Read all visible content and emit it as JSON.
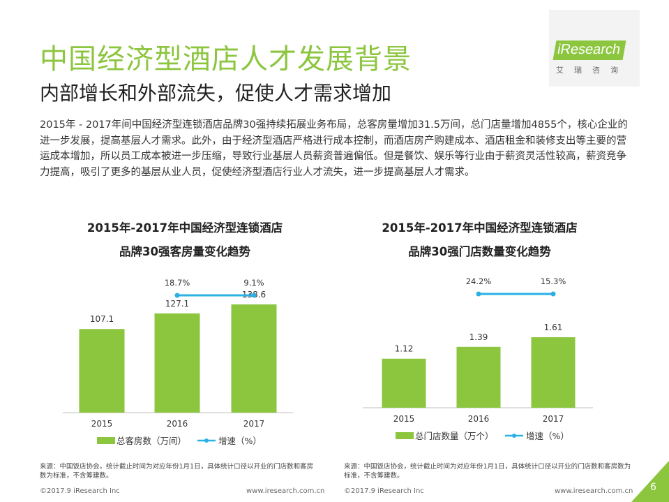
{
  "header": {
    "title": "中国经济型酒店人才发展背景",
    "subtitle": "内部增长和外部流失，促使人才需求增加"
  },
  "body_text": "2015年 - 2017年间中国经济型连锁酒店品牌30强持续拓展业务布局，总客房量增加31.5万间，总门店量增加4855个，核心企业的进一步发展，提高基层人才需求。此外，由于经济型酒店严格进行成本控制，而酒店房产购建成本、酒店租金和装修支出等主要的营运成本增加，所以员工成本被进一步压缩，导致行业基层人员薪资普遍偏低。但是餐饮、娱乐等行业由于薪资灵活性较高，薪资竞争力提高，吸引了更多的基层从业人员，促使经济型酒店行业人才流失，进一步提高基层人才需求。",
  "logo": {
    "text": "iResearch",
    "cn": "艾瑞咨询"
  },
  "colors": {
    "accent": "#8cc63f",
    "line": "#2ab0e4"
  },
  "chart_data": [
    {
      "type": "bar",
      "title_line1": "2015年-2017年中国经济型连锁酒店",
      "title_line2": "品牌30强客房量变化趋势",
      "categories": [
        "2015",
        "2016",
        "2017"
      ],
      "series": [
        {
          "name": "总客房数（万间）",
          "type": "bar",
          "values": [
            107.1,
            127.1,
            138.6
          ],
          "labels": [
            "107.1",
            "127.1",
            "138.6"
          ]
        },
        {
          "name": "增速（%）",
          "type": "line",
          "values": [
            null,
            18.7,
            9.1
          ],
          "labels": [
            "",
            "18.7%",
            "9.1%"
          ]
        }
      ],
      "legend_position": "bottom",
      "grid": false
    },
    {
      "type": "bar",
      "title_line1": "2015年-2017年中国经济型连锁酒店",
      "title_line2": "品牌30强门店数量变化趋势",
      "categories": [
        "2015",
        "2016",
        "2017"
      ],
      "series": [
        {
          "name": "总门店数量（万个）",
          "type": "bar",
          "values": [
            1.12,
            1.39,
            1.61
          ],
          "labels": [
            "1.12",
            "1.39",
            "1.61"
          ]
        },
        {
          "name": "增速（%）",
          "type": "line",
          "values": [
            null,
            24.2,
            15.3
          ],
          "labels": [
            "",
            "24.2%",
            "15.3%"
          ]
        }
      ],
      "legend_position": "bottom",
      "grid": false
    }
  ],
  "sources": {
    "left": "来源：中国饭店协会，统计截止时间为对应年份1月1日，具体统计口径以开业的门店数和客房数为标准，不含筹建数。",
    "right": "来源：中国饭店协会，统计截止时间为对应年份1月1日，具体统计口径以开业的门店数和客房数为标准，不含筹建数。"
  },
  "footer": {
    "left_copyright": "©2017.9 iResearch Inc",
    "left_url": "www.iresearch.com.cn",
    "right_copyright": "©2017.9 iResearch Inc",
    "right_url": "www.iresearch.com.cn",
    "page_number": "6"
  }
}
